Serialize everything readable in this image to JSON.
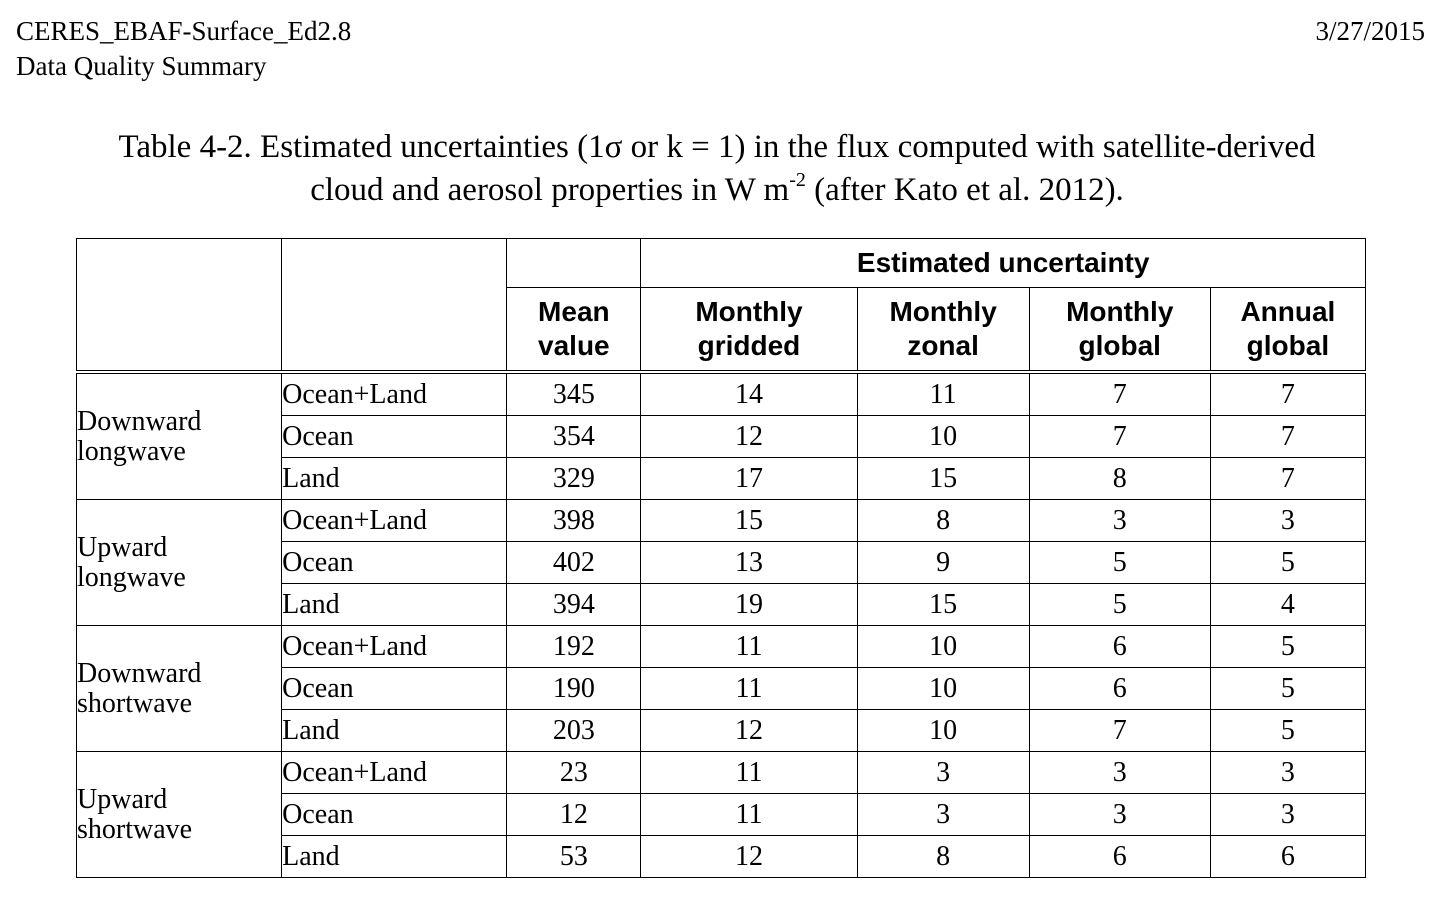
{
  "header": {
    "product": "CERES_EBAF-Surface_Ed2.8",
    "doc_title": "Data Quality Summary",
    "date": "3/27/2015"
  },
  "caption": {
    "line1": "Table 4-2.  Estimated uncertainties (1σ or k = 1) in the flux computed with satellite-derived",
    "line2_pre": "cloud and aerosol properties in W m",
    "line2_sup": "-2",
    "line2_post": " (after Kato et al. 2012)."
  },
  "table": {
    "group_header": "Estimated uncertainty",
    "columns": {
      "mean": "Mean\nvalue",
      "monthly_gridded": "Monthly\ngridded",
      "monthly_zonal": "Monthly\nzonal",
      "monthly_global": "Monthly\nglobal",
      "annual_global": "Annual\nglobal"
    },
    "groups": [
      {
        "label": "Downward\nlongwave",
        "rows": [
          {
            "region": "Ocean+Land",
            "mean": "345",
            "monthly_gridded": "14",
            "monthly_zonal": "11",
            "monthly_global": "7",
            "annual_global": "7"
          },
          {
            "region": "Ocean",
            "mean": "354",
            "monthly_gridded": "12",
            "monthly_zonal": "10",
            "monthly_global": "7",
            "annual_global": "7"
          },
          {
            "region": "Land",
            "mean": "329",
            "monthly_gridded": "17",
            "monthly_zonal": "15",
            "monthly_global": "8",
            "annual_global": "7"
          }
        ]
      },
      {
        "label": "Upward\nlongwave",
        "rows": [
          {
            "region": "Ocean+Land",
            "mean": "398",
            "monthly_gridded": "15",
            "monthly_zonal": "8",
            "monthly_global": "3",
            "annual_global": "3"
          },
          {
            "region": "Ocean",
            "mean": "402",
            "monthly_gridded": "13",
            "monthly_zonal": "9",
            "monthly_global": "5",
            "annual_global": "5"
          },
          {
            "region": "Land",
            "mean": "394",
            "monthly_gridded": "19",
            "monthly_zonal": "15",
            "monthly_global": "5",
            "annual_global": "4"
          }
        ]
      },
      {
        "label": "Downward\nshortwave",
        "rows": [
          {
            "region": "Ocean+Land",
            "mean": "192",
            "monthly_gridded": "11",
            "monthly_zonal": "10",
            "monthly_global": "6",
            "annual_global": "5"
          },
          {
            "region": "Ocean",
            "mean": "190",
            "monthly_gridded": "11",
            "monthly_zonal": "10",
            "monthly_global": "6",
            "annual_global": "5"
          },
          {
            "region": "Land",
            "mean": "203",
            "monthly_gridded": "12",
            "monthly_zonal": "10",
            "monthly_global": "7",
            "annual_global": "5"
          }
        ]
      },
      {
        "label": "Upward\nshortwave",
        "rows": [
          {
            "region": "Ocean+Land",
            "mean": "23",
            "monthly_gridded": "11",
            "monthly_zonal": "3",
            "monthly_global": "3",
            "annual_global": "3"
          },
          {
            "region": "Ocean",
            "mean": "12",
            "monthly_gridded": "11",
            "monthly_zonal": "3",
            "monthly_global": "3",
            "annual_global": "3"
          },
          {
            "region": "Land",
            "mean": "53",
            "monthly_gridded": "12",
            "monthly_zonal": "8",
            "monthly_global": "6",
            "annual_global": "6"
          }
        ]
      }
    ]
  }
}
